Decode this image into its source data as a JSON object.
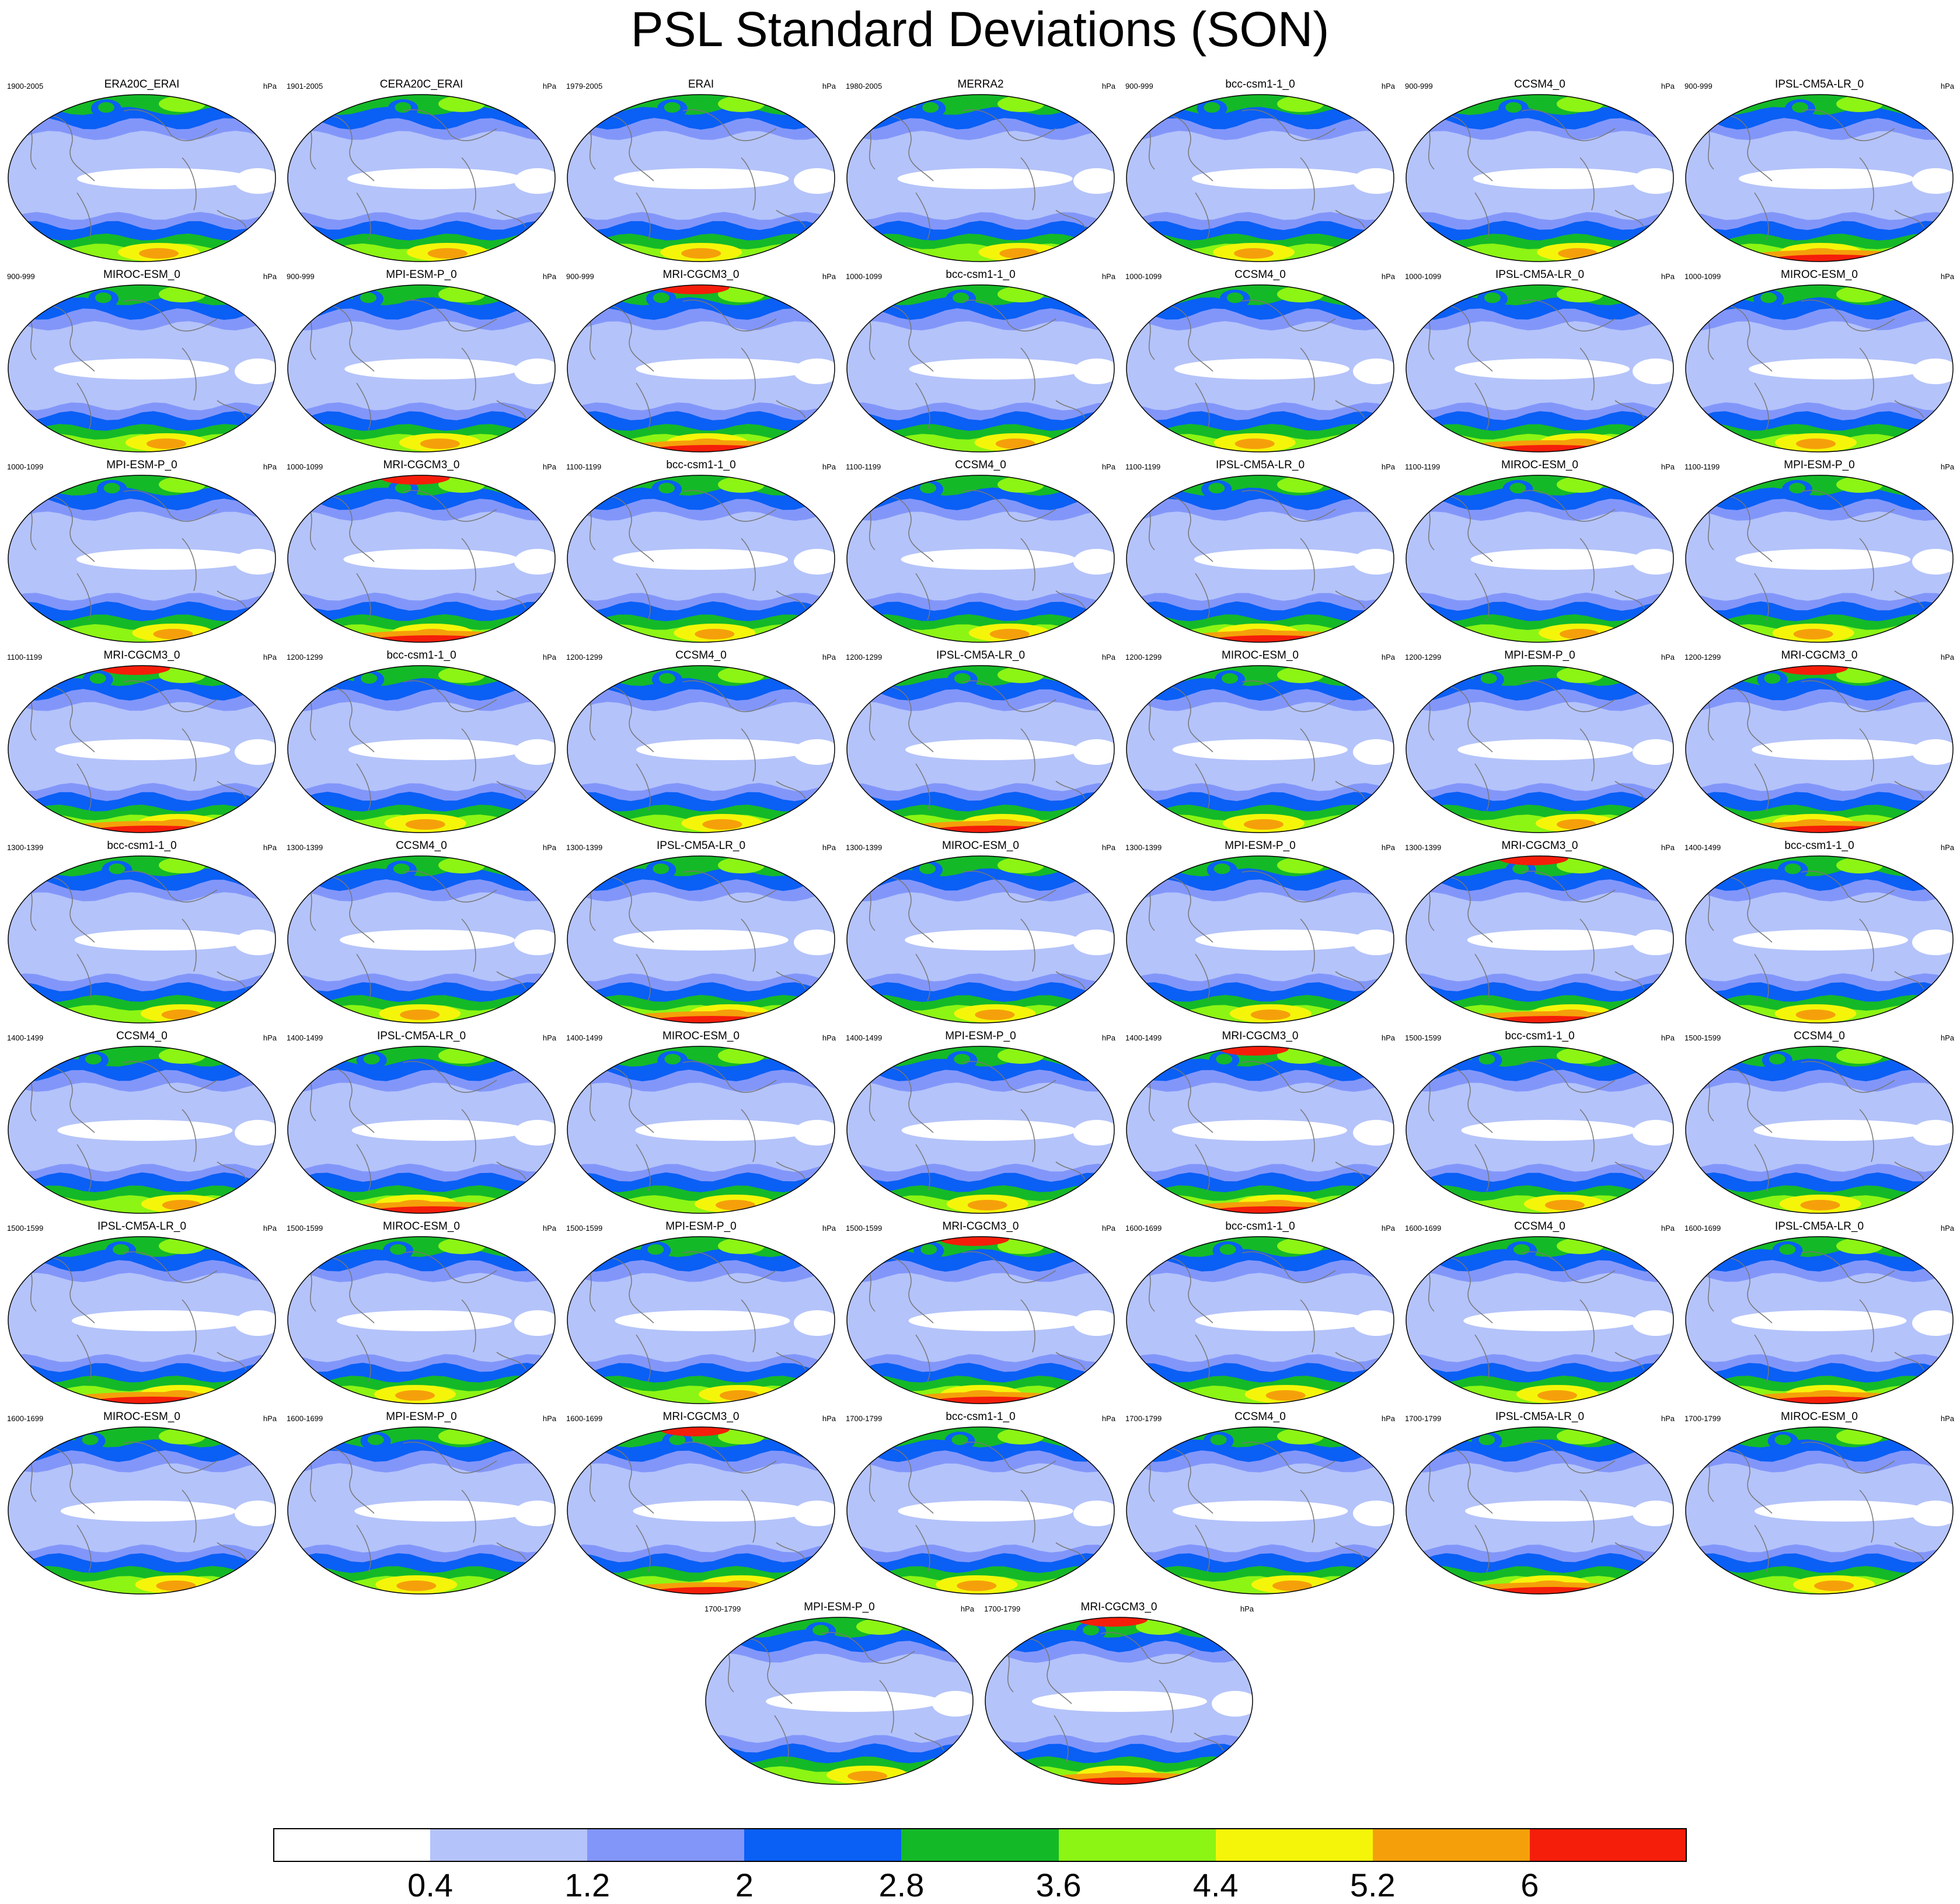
{
  "title": "PSL Standard Deviations (SON)",
  "units": "hPa",
  "colorbar": {
    "colors": [
      "#ffffff",
      "#b4c3fa",
      "#8296fa",
      "#0a5ff5",
      "#14b928",
      "#8cf514",
      "#f5f50a",
      "#f5a00a",
      "#f51e0a"
    ],
    "levels": [
      "0.4",
      "1.2",
      "2",
      "2.8",
      "3.6",
      "4.4",
      "5.2",
      "6"
    ]
  },
  "panels": [
    {
      "title": "ERA20C_ERAI",
      "period": "1900-2005"
    },
    {
      "title": "CERA20C_ERAI",
      "period": "1901-2005"
    },
    {
      "title": "ERAI",
      "period": "1979-2005"
    },
    {
      "title": "MERRA2",
      "period": "1980-2005"
    },
    {
      "title": "bcc-csm1-1_0",
      "period": "900-999"
    },
    {
      "title": "CCSM4_0",
      "period": "900-999"
    },
    {
      "title": "IPSL-CM5A-LR_0",
      "period": "900-999"
    },
    {
      "title": "MIROC-ESM_0",
      "period": "900-999"
    },
    {
      "title": "MPI-ESM-P_0",
      "period": "900-999"
    },
    {
      "title": "MRI-CGCM3_0",
      "period": "900-999"
    },
    {
      "title": "bcc-csm1-1_0",
      "period": "1000-1099"
    },
    {
      "title": "CCSM4_0",
      "period": "1000-1099"
    },
    {
      "title": "IPSL-CM5A-LR_0",
      "period": "1000-1099"
    },
    {
      "title": "MIROC-ESM_0",
      "period": "1000-1099"
    },
    {
      "title": "MPI-ESM-P_0",
      "period": "1000-1099"
    },
    {
      "title": "MRI-CGCM3_0",
      "period": "1000-1099"
    },
    {
      "title": "bcc-csm1-1_0",
      "period": "1100-1199"
    },
    {
      "title": "CCSM4_0",
      "period": "1100-1199"
    },
    {
      "title": "IPSL-CM5A-LR_0",
      "period": "1100-1199"
    },
    {
      "title": "MIROC-ESM_0",
      "period": "1100-1199"
    },
    {
      "title": "MPI-ESM-P_0",
      "period": "1100-1199"
    },
    {
      "title": "MRI-CGCM3_0",
      "period": "1100-1199"
    },
    {
      "title": "bcc-csm1-1_0",
      "period": "1200-1299"
    },
    {
      "title": "CCSM4_0",
      "period": "1200-1299"
    },
    {
      "title": "IPSL-CM5A-LR_0",
      "period": "1200-1299"
    },
    {
      "title": "MIROC-ESM_0",
      "period": "1200-1299"
    },
    {
      "title": "MPI-ESM-P_0",
      "period": "1200-1299"
    },
    {
      "title": "MRI-CGCM3_0",
      "period": "1200-1299"
    },
    {
      "title": "bcc-csm1-1_0",
      "period": "1300-1399"
    },
    {
      "title": "CCSM4_0",
      "period": "1300-1399"
    },
    {
      "title": "IPSL-CM5A-LR_0",
      "period": "1300-1399"
    },
    {
      "title": "MIROC-ESM_0",
      "period": "1300-1399"
    },
    {
      "title": "MPI-ESM-P_0",
      "period": "1300-1399"
    },
    {
      "title": "MRI-CGCM3_0",
      "period": "1300-1399"
    },
    {
      "title": "bcc-csm1-1_0",
      "period": "1400-1499"
    },
    {
      "title": "CCSM4_0",
      "period": "1400-1499"
    },
    {
      "title": "IPSL-CM5A-LR_0",
      "period": "1400-1499"
    },
    {
      "title": "MIROC-ESM_0",
      "period": "1400-1499"
    },
    {
      "title": "MPI-ESM-P_0",
      "period": "1400-1499"
    },
    {
      "title": "MRI-CGCM3_0",
      "period": "1400-1499"
    },
    {
      "title": "bcc-csm1-1_0",
      "period": "1500-1599"
    },
    {
      "title": "CCSM4_0",
      "period": "1500-1599"
    },
    {
      "title": "IPSL-CM5A-LR_0",
      "period": "1500-1599"
    },
    {
      "title": "MIROC-ESM_0",
      "period": "1500-1599"
    },
    {
      "title": "MPI-ESM-P_0",
      "period": "1500-1599"
    },
    {
      "title": "MRI-CGCM3_0",
      "period": "1500-1599"
    },
    {
      "title": "bcc-csm1-1_0",
      "period": "1600-1699"
    },
    {
      "title": "CCSM4_0",
      "period": "1600-1699"
    },
    {
      "title": "IPSL-CM5A-LR_0",
      "period": "1600-1699"
    },
    {
      "title": "MIROC-ESM_0",
      "period": "1600-1699"
    },
    {
      "title": "MPI-ESM-P_0",
      "period": "1600-1699"
    },
    {
      "title": "MRI-CGCM3_0",
      "period": "1600-1699"
    },
    {
      "title": "bcc-csm1-1_0",
      "period": "1700-1799"
    },
    {
      "title": "CCSM4_0",
      "period": "1700-1799"
    },
    {
      "title": "IPSL-CM5A-LR_0",
      "period": "1700-1799"
    },
    {
      "title": "MIROC-ESM_0",
      "period": "1700-1799"
    },
    {
      "title": "MPI-ESM-P_0",
      "period": "1700-1799"
    },
    {
      "title": "MRI-CGCM3_0",
      "period": "1700-1799"
    }
  ]
}
